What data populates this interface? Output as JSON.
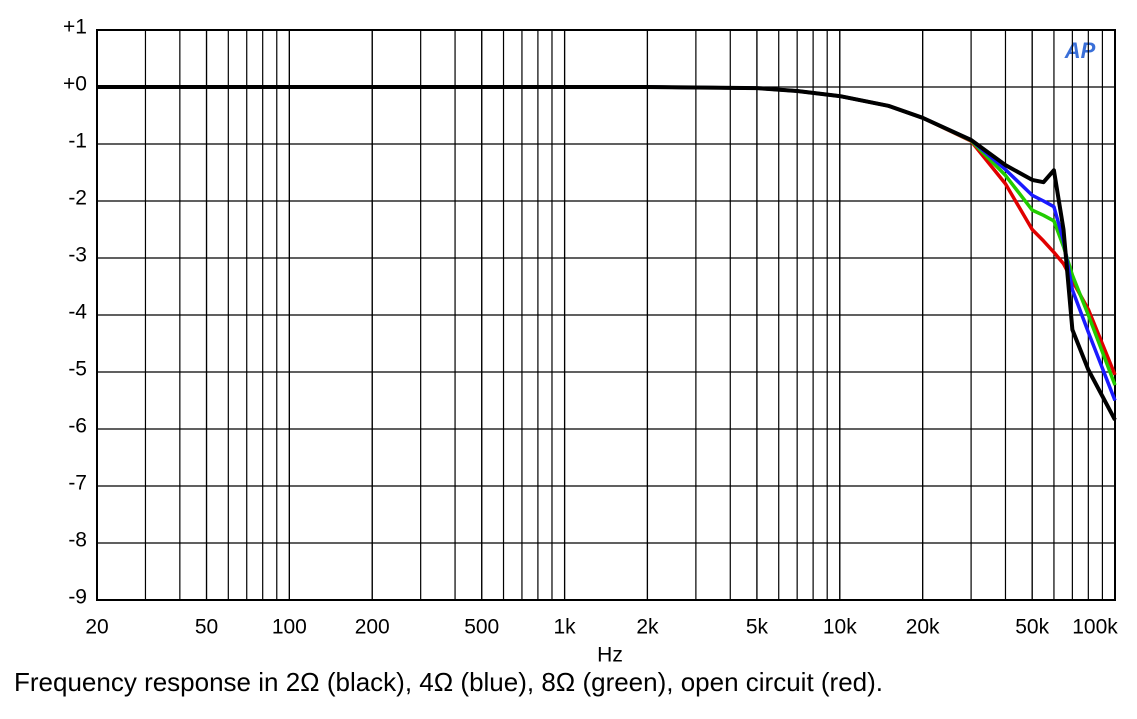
{
  "chart_data": {
    "type": "line",
    "title": "Frequency response in 2Ω (black), 4Ω (blue), 8Ω (green), open circuit (red).",
    "x_label": "Hz",
    "logo": "AP",
    "x_log": true,
    "grid": true,
    "xlim": [
      20,
      100000
    ],
    "ylim": [
      -9,
      1
    ],
    "xticks": [
      20,
      50,
      100,
      200,
      500,
      {
        "value": 1000,
        "label": "1k"
      },
      {
        "value": 2000,
        "label": "2k"
      },
      {
        "value": 5000,
        "label": "5k"
      },
      {
        "value": 10000,
        "label": "10k"
      },
      {
        "value": 20000,
        "label": "20k"
      },
      {
        "value": 50000,
        "label": "50k"
      },
      {
        "value": 100000,
        "label": "100k"
      }
    ],
    "yticks": [
      {
        "value": 1,
        "label": "+1"
      },
      {
        "value": 0,
        "label": "+0"
      },
      -1,
      -2,
      -3,
      -4,
      -5,
      -6,
      -7,
      -8,
      -9
    ],
    "x": [
      20,
      50,
      100,
      200,
      500,
      1000,
      2000,
      5000,
      7000,
      10000,
      15000,
      20000,
      30000,
      40000,
      50000,
      55000,
      60000,
      65000,
      70000,
      80000,
      100000
    ],
    "series": [
      {
        "color": "#e00000",
        "values": [
          0,
          0,
          0,
          0,
          0,
          0,
          0,
          -0.02,
          -0.07,
          -0.16,
          -0.33,
          -0.54,
          -0.95,
          -1.7,
          -2.5,
          -2.7,
          -2.9,
          -3.1,
          -3.4,
          -3.9,
          -5.05
        ]
      },
      {
        "color": "#22cc00",
        "values": [
          0,
          0,
          0,
          0,
          0,
          0,
          0,
          -0.02,
          -0.07,
          -0.16,
          -0.33,
          -0.54,
          -0.94,
          -1.55,
          -2.16,
          -2.25,
          -2.35,
          -2.8,
          -3.3,
          -4.0,
          -5.23
        ]
      },
      {
        "color": "#1a1aff",
        "values": [
          0,
          0,
          0,
          0,
          0,
          0,
          0,
          -0.02,
          -0.07,
          -0.16,
          -0.33,
          -0.54,
          -0.93,
          -1.45,
          -1.9,
          -2.0,
          -2.1,
          -2.7,
          -3.56,
          -4.3,
          -5.5
        ]
      },
      {
        "color": "#000000",
        "values": [
          0,
          0,
          0,
          0,
          0,
          0,
          0,
          -0.02,
          -0.07,
          -0.16,
          -0.33,
          -0.54,
          -0.93,
          -1.37,
          -1.63,
          -1.67,
          -1.46,
          -2.5,
          -4.26,
          -4.96,
          -5.84
        ]
      }
    ]
  }
}
